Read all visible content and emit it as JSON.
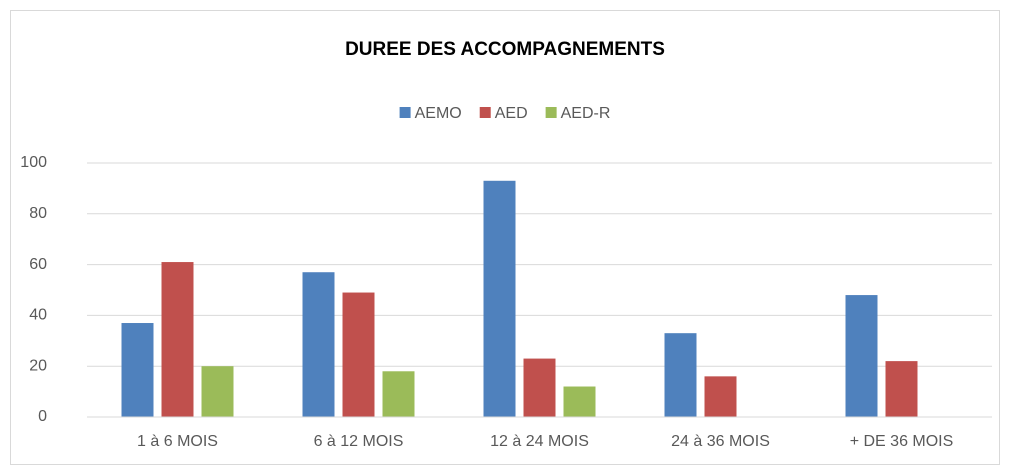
{
  "chart_data": {
    "type": "bar",
    "title": "DUREE DES ACCOMPAGNEMENTS",
    "categories": [
      "1 à 6 MOIS",
      "6 à 12 MOIS",
      "12 à 24 MOIS",
      "24 à 36 MOIS",
      "+ DE 36 MOIS"
    ],
    "series": [
      {
        "name": "AEMO",
        "color": "#4f81bd",
        "values": [
          37,
          57,
          93,
          33,
          48
        ]
      },
      {
        "name": "AED",
        "color": "#c0504d",
        "values": [
          61,
          49,
          23,
          16,
          22
        ]
      },
      {
        "name": "AED-R",
        "color": "#9bbb59",
        "values": [
          20,
          18,
          12,
          0,
          0
        ]
      }
    ],
    "ylim": [
      0,
      100
    ],
    "yticks": [
      0,
      20,
      40,
      60,
      80,
      100
    ],
    "grid": true,
    "legend": "top"
  }
}
